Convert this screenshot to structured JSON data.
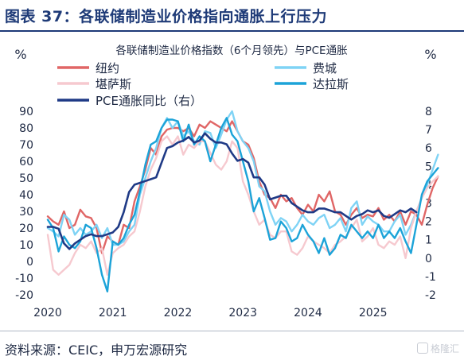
{
  "header": {
    "title": "图表 37：各联储制造业价格指向通胀上行压力"
  },
  "source": "资料来源：CEIC，申万宏源研究",
  "watermark": "格隆汇",
  "colors": {
    "nyc": "#e06666",
    "philly": "#7fd3f5",
    "kc": "#f6c9cf",
    "dallas": "#1ca3d8",
    "pce": "#1f3a86",
    "header": "#1f3b78"
  },
  "chart_data": {
    "type": "line",
    "title": "各联储制造业价格指数（6个月领先）与PCE通胀",
    "left_unit": "%",
    "right_unit": "%",
    "ylim_left": [
      -20,
      90
    ],
    "ylim_right": [
      -2,
      8
    ],
    "yticks_left": [
      -20,
      -10,
      0,
      10,
      20,
      30,
      40,
      50,
      60,
      70,
      80,
      90
    ],
    "yticks_right": [
      -2,
      -1,
      0,
      1,
      2,
      3,
      4,
      5,
      6,
      7,
      8
    ],
    "xtick_labels": [
      "2020",
      "2021",
      "2022",
      "2023",
      "2024",
      "2025"
    ],
    "xlim": [
      "2020-01",
      "2025-10"
    ],
    "legend": [
      "纽约",
      "费城",
      "堪萨斯",
      "达拉斯",
      "PCE通胀同比（右）"
    ],
    "series": [
      {
        "name": "纽约",
        "axis": "left",
        "start": "2020-01",
        "values": [
          27,
          24,
          22,
          30,
          20,
          22,
          31,
          27,
          26,
          20,
          5,
          15,
          12,
          10,
          22,
          20,
          36,
          45,
          55,
          68,
          64,
          75,
          79,
          80,
          80,
          78,
          80,
          75,
          82,
          80,
          84,
          82,
          80,
          78,
          84,
          78,
          72,
          70,
          62,
          48,
          40,
          38,
          32,
          40,
          36,
          38,
          32,
          28,
          34,
          30,
          40,
          36,
          42,
          30,
          28,
          22,
          28,
          32,
          26,
          28,
          27,
          32,
          25,
          28,
          24,
          30,
          22,
          30,
          28,
          22,
          34,
          44,
          51
        ]
      },
      {
        "name": "费城",
        "axis": "left",
        "start": "2020-01",
        "values": [
          20,
          18,
          15,
          28,
          25,
          16,
          20,
          16,
          18,
          22,
          14,
          20,
          10,
          10,
          12,
          18,
          22,
          40,
          50,
          60,
          68,
          80,
          86,
          80,
          84,
          75,
          78,
          72,
          70,
          78,
          77,
          68,
          76,
          85,
          90,
          78,
          72,
          68,
          60,
          45,
          42,
          30,
          22,
          26,
          24,
          18,
          22,
          28,
          24,
          22,
          26,
          28,
          20,
          22,
          26,
          18,
          32,
          36,
          22,
          27,
          24,
          22,
          18,
          18,
          24,
          28,
          16,
          22,
          30,
          38,
          46,
          55,
          64
        ]
      },
      {
        "name": "堪萨斯",
        "axis": "left",
        "start": "2020-01",
        "values": [
          16,
          -5,
          -8,
          -5,
          -2,
          5,
          10,
          8,
          12,
          5,
          8,
          -8,
          5,
          8,
          10,
          15,
          18,
          30,
          45,
          55,
          62,
          72,
          75,
          70,
          75,
          64,
          70,
          68,
          72,
          72,
          65,
          58,
          55,
          60,
          72,
          68,
          48,
          40,
          30,
          22,
          25,
          16,
          14,
          18,
          18,
          6,
          4,
          8,
          15,
          12,
          10,
          8,
          5,
          10,
          12,
          15,
          20,
          25,
          12,
          15,
          20,
          10,
          8,
          12,
          10,
          15,
          2,
          20,
          30,
          38,
          44,
          48,
          51
        ]
      },
      {
        "name": "达拉斯",
        "axis": "left",
        "start": "2020-01",
        "values": [
          25,
          20,
          6,
          15,
          10,
          8,
          12,
          22,
          20,
          8,
          -8,
          -18,
          12,
          10,
          14,
          22,
          28,
          42,
          58,
          70,
          72,
          80,
          85,
          85,
          84,
          72,
          82,
          70,
          75,
          72,
          60,
          70,
          80,
          86,
          76,
          72,
          60,
          48,
          30,
          38,
          26,
          13,
          14,
          24,
          20,
          12,
          14,
          22,
          16,
          12,
          5,
          14,
          4,
          8,
          16,
          14,
          22,
          18,
          14,
          18,
          14,
          22,
          14,
          18,
          14,
          20,
          12,
          5,
          22,
          40,
          48,
          52,
          56
        ]
      },
      {
        "name": "PCE通胀同比（右）",
        "axis": "right",
        "start": "2020-01",
        "values": [
          1.7,
          1.7,
          1.6,
          0.8,
          0.5,
          0.8,
          1.0,
          1.2,
          1.3,
          1.2,
          1.2,
          1.3,
          1.4,
          1.7,
          2.5,
          3.6,
          4.0,
          4.1,
          4.2,
          4.3,
          4.4,
          5.2,
          6.0,
          6.1,
          6.3,
          6.4,
          6.6,
          6.3,
          6.4,
          6.8,
          6.5,
          6.3,
          6.3,
          6.2,
          5.7,
          5.3,
          5.4,
          5.2,
          4.4,
          4.4,
          4.0,
          3.2,
          3.3,
          3.4,
          3.4,
          3.0,
          2.8,
          2.6,
          2.5,
          2.5,
          2.7,
          2.7,
          2.6,
          2.5,
          2.5,
          2.3,
          2.1,
          2.3,
          2.4,
          2.6,
          2.5,
          2.6,
          2.3,
          2.2,
          2.4,
          2.6,
          2.5,
          2.7,
          2.5
        ]
      }
    ]
  }
}
